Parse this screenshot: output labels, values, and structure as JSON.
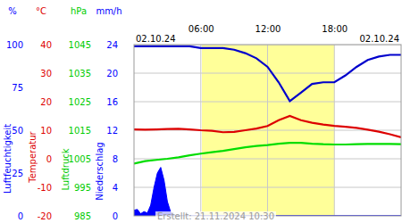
{
  "chart_data": {
    "type": "line",
    "x": [
      0,
      1,
      2,
      3,
      4,
      5,
      6,
      7,
      8,
      9,
      10,
      11,
      12,
      13,
      14,
      15,
      16,
      17,
      18,
      19,
      20,
      21,
      22,
      23,
      24
    ],
    "xlim": [
      0,
      24
    ],
    "xticks": [
      {
        "value": 6,
        "label": "06:00"
      },
      {
        "value": 12,
        "label": "12:00"
      },
      {
        "value": 18,
        "label": "18:00"
      }
    ],
    "grid": true,
    "daylight": [
      6.1,
      18.0
    ],
    "annotations": [
      "02.10.24",
      "02.10.24",
      "Erstellt: 21.11.2024 10:30"
    ],
    "axes": [
      {
        "unit": "%",
        "label": "Luftfeuchtigkeit",
        "color": "#0000ff",
        "lim": [
          0,
          100
        ],
        "ticks": [
          0,
          25,
          50,
          75,
          100
        ]
      },
      {
        "unit": "°C",
        "label": "Temperatur",
        "color": "#dd0000",
        "lim": [
          -20,
          40
        ],
        "ticks": [
          -20,
          -10,
          0,
          10,
          20,
          30,
          40
        ]
      },
      {
        "unit": "hPa",
        "label": "Luftdruck",
        "color": "#00cc00",
        "lim": [
          985,
          1045
        ],
        "ticks": [
          985,
          995,
          1005,
          1015,
          1025,
          1035,
          1045
        ]
      },
      {
        "unit": "mm/h",
        "label": "Niederschlag",
        "color": "#0000ff",
        "lim": [
          0,
          24
        ],
        "ticks": [
          0,
          4,
          8,
          12,
          16,
          20,
          24
        ]
      }
    ],
    "series": [
      {
        "axis": 0,
        "type": "line",
        "color": "#0000cc",
        "values": [
          99,
          99,
          99,
          99,
          99,
          99,
          98,
          98,
          98,
          97,
          95,
          92,
          87,
          78,
          67,
          72,
          77,
          78,
          78,
          82,
          87,
          91,
          93,
          94,
          94
        ]
      },
      {
        "axis": 1,
        "type": "line",
        "color": "#dd0000",
        "values": [
          10.3,
          10.2,
          10.3,
          10.4,
          10.5,
          10.3,
          10.0,
          9.8,
          9.3,
          9.4,
          10.0,
          10.6,
          11.5,
          13.5,
          15.0,
          13.5,
          12.6,
          12.0,
          11.5,
          11.2,
          10.8,
          10.2,
          9.5,
          8.6,
          7.5
        ]
      },
      {
        "axis": 2,
        "type": "line",
        "color": "#00dd00",
        "values": [
          1003.3,
          1004.2,
          1004.6,
          1005.0,
          1005.5,
          1006.2,
          1006.8,
          1007.3,
          1007.8,
          1008.4,
          1009.0,
          1009.5,
          1009.8,
          1010.3,
          1010.6,
          1010.6,
          1010.3,
          1010.1,
          1010.0,
          1010.0,
          1010.1,
          1010.2,
          1010.2,
          1010.2,
          1010.1
        ]
      },
      {
        "axis": 3,
        "type": "area",
        "color": "#0000ff",
        "x": [
          0,
          0.3,
          0.6,
          0.9,
          1.2,
          1.5,
          1.8,
          2.1,
          2.4,
          2.7,
          3.0,
          3.3,
          3.6,
          4.0,
          24
        ],
        "values": [
          0.8,
          0.9,
          0.3,
          0.6,
          0.4,
          1.5,
          4.0,
          6.0,
          6.8,
          5.0,
          2.0,
          0.5,
          0,
          0,
          0
        ]
      }
    ]
  }
}
